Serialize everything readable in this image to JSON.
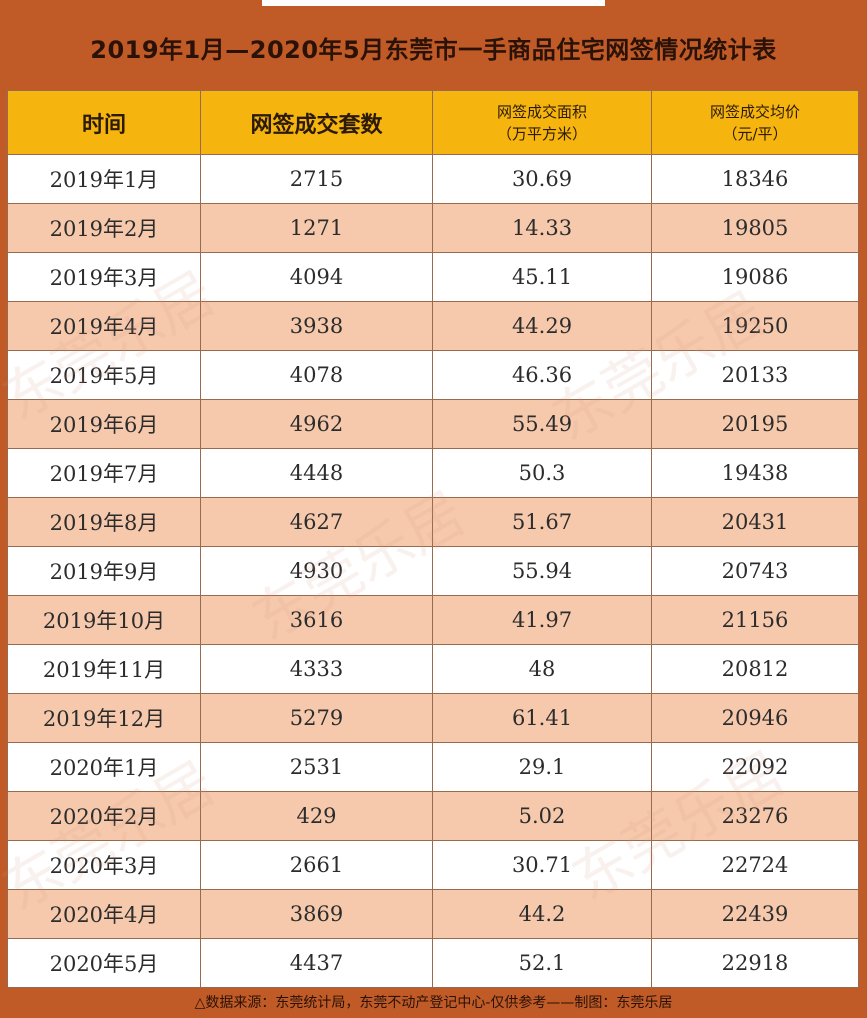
{
  "title": "2019年1月—2020年5月东莞市一手商品住宅网签情况统计表",
  "headers": {
    "time": "时间",
    "units": "网签成交套数",
    "area_line1": "网签成交面积",
    "area_line2": "（万平方米）",
    "price_line1": "网签成交均价",
    "price_line2": "（元/平）"
  },
  "rows": [
    {
      "time": "2019年1月",
      "units": "2715",
      "area": "30.69",
      "price": "18346"
    },
    {
      "time": "2019年2月",
      "units": "1271",
      "area": "14.33",
      "price": "19805"
    },
    {
      "time": "2019年3月",
      "units": "4094",
      "area": "45.11",
      "price": "19086"
    },
    {
      "time": "2019年4月",
      "units": "3938",
      "area": "44.29",
      "price": "19250"
    },
    {
      "time": "2019年5月",
      "units": "4078",
      "area": "46.36",
      "price": "20133"
    },
    {
      "time": "2019年6月",
      "units": "4962",
      "area": "55.49",
      "price": "20195"
    },
    {
      "time": "2019年7月",
      "units": "4448",
      "area": "50.3",
      "price": "19438"
    },
    {
      "time": "2019年8月",
      "units": "4627",
      "area": "51.67",
      "price": "20431"
    },
    {
      "time": "2019年9月",
      "units": "4930",
      "area": "55.94",
      "price": "20743"
    },
    {
      "time": "2019年10月",
      "units": "3616",
      "area": "41.97",
      "price": "21156"
    },
    {
      "time": "2019年11月",
      "units": "4333",
      "area": "48",
      "price": "20812"
    },
    {
      "time": "2019年12月",
      "units": "5279",
      "area": "61.41",
      "price": "20946"
    },
    {
      "time": "2020年1月",
      "units": "2531",
      "area": "29.1",
      "price": "22092"
    },
    {
      "time": "2020年2月",
      "units": "429",
      "area": "5.02",
      "price": "23276"
    },
    {
      "time": "2020年3月",
      "units": "2661",
      "area": "30.71",
      "price": "22724"
    },
    {
      "time": "2020年4月",
      "units": "3869",
      "area": "44.2",
      "price": "22439"
    },
    {
      "time": "2020年5月",
      "units": "4437",
      "area": "52.1",
      "price": "22918"
    }
  ],
  "footer": "△数据来源：东莞统计局，东莞不动产登记中心-仅供参考——制图：东莞乐居",
  "watermark": "东莞乐居",
  "colors": {
    "frame": "#c05a26",
    "header_bg": "#f6b40f",
    "stripe": "#f6c9ad"
  }
}
